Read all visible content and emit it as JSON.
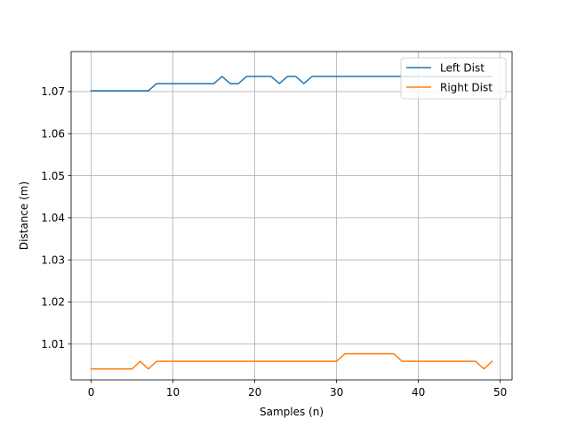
{
  "chart_data": {
    "type": "line",
    "title": "",
    "xlabel": "Samples (n)",
    "ylabel": "Distance (m)",
    "xlim": [
      -2.45,
      51.45
    ],
    "ylim": [
      1.0015,
      1.0795
    ],
    "xticks": [
      0,
      10,
      20,
      30,
      40,
      50
    ],
    "yticks": [
      1.01,
      1.02,
      1.03,
      1.04,
      1.05,
      1.06,
      1.07
    ],
    "ytick_labels": [
      "1.01",
      "1.02",
      "1.03",
      "1.04",
      "1.05",
      "1.06",
      "1.07"
    ],
    "grid": true,
    "legend_position": "top-right",
    "series": [
      {
        "name": "Left Dist",
        "color": "#1f77b4",
        "x": [
          0,
          1,
          2,
          3,
          4,
          5,
          6,
          7,
          8,
          9,
          10,
          11,
          12,
          13,
          14,
          15,
          16,
          17,
          18,
          19,
          20,
          21,
          22,
          23,
          24,
          25,
          26,
          27,
          28,
          29,
          30,
          31,
          32,
          33,
          34,
          35,
          36,
          37,
          38,
          39,
          40,
          41,
          42,
          43,
          44,
          45,
          46,
          47,
          48,
          49
        ],
        "values": [
          1.0702,
          1.0702,
          1.0702,
          1.0702,
          1.0702,
          1.0702,
          1.0702,
          1.0702,
          1.0719,
          1.0719,
          1.0719,
          1.0719,
          1.0719,
          1.0719,
          1.0719,
          1.0719,
          1.0736,
          1.0719,
          1.0719,
          1.0736,
          1.0736,
          1.0736,
          1.0736,
          1.0719,
          1.0736,
          1.0736,
          1.0719,
          1.0736,
          1.0736,
          1.0736,
          1.0736,
          1.0736,
          1.0736,
          1.0736,
          1.0736,
          1.0736,
          1.0736,
          1.0736,
          1.0736,
          1.0736,
          1.0736,
          1.0736,
          1.0736,
          1.0736,
          1.0736,
          1.0736,
          1.0736,
          1.0736,
          1.0736,
          1.0736
        ]
      },
      {
        "name": "Right Dist",
        "color": "#ff7f0e",
        "x": [
          0,
          1,
          2,
          3,
          4,
          5,
          6,
          7,
          8,
          9,
          10,
          11,
          12,
          13,
          14,
          15,
          16,
          17,
          18,
          19,
          20,
          21,
          22,
          23,
          24,
          25,
          26,
          27,
          28,
          29,
          30,
          31,
          32,
          33,
          34,
          35,
          36,
          37,
          38,
          39,
          40,
          41,
          42,
          43,
          44,
          45,
          46,
          47,
          48,
          49
        ],
        "values": [
          1.0041,
          1.0041,
          1.0041,
          1.0041,
          1.0041,
          1.0041,
          1.0059,
          1.0041,
          1.0059,
          1.0059,
          1.0059,
          1.0059,
          1.0059,
          1.0059,
          1.0059,
          1.0059,
          1.0059,
          1.0059,
          1.0059,
          1.0059,
          1.0059,
          1.0059,
          1.0059,
          1.0059,
          1.0059,
          1.0059,
          1.0059,
          1.0059,
          1.0059,
          1.0059,
          1.0059,
          1.0077,
          1.0077,
          1.0077,
          1.0077,
          1.0077,
          1.0077,
          1.0077,
          1.0059,
          1.0059,
          1.0059,
          1.0059,
          1.0059,
          1.0059,
          1.0059,
          1.0059,
          1.0059,
          1.0059,
          1.0041,
          1.0059
        ]
      }
    ]
  }
}
